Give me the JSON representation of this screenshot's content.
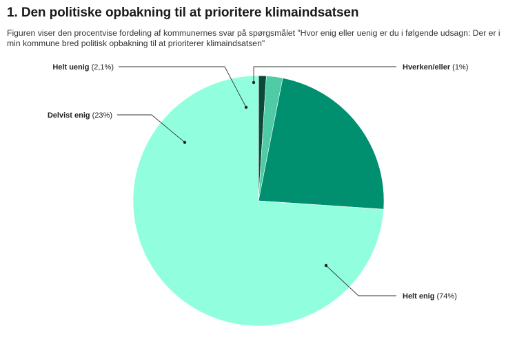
{
  "title": "1. Den politiske opbakning til at prioritere klimaindsatsen",
  "subtitle": "Figuren viser den procentvise fordeling af kommunernes svar på spørgsmålet \"Hvor enig eller uenig er du i følgende udsagn: Der er i  min kommune bred politisk opbakning til at prioriterer klimaindsatsen\"",
  "chart_data": {
    "type": "pie",
    "title": "1. Den politiske opbakning til at prioritere klimaindsatsen",
    "slices": [
      {
        "label": "Helt enig",
        "value_label": "(74%)",
        "value": 74.0,
        "color": "#91FFDE"
      },
      {
        "label": "Delvist enig",
        "value_label": "(23%)",
        "value": 23.0,
        "color": "#008F6F"
      },
      {
        "label": "Helt uenig",
        "value_label": "(2,1%)",
        "value": 2.1,
        "color": "#4FCBA6"
      },
      {
        "label": "Hverken/eller",
        "value_label": "(1%)",
        "value": 1.0,
        "color": "#0B4A3A"
      }
    ],
    "start_angle": "12 o'clock, clockwise",
    "legend": "none (callout labels)"
  }
}
